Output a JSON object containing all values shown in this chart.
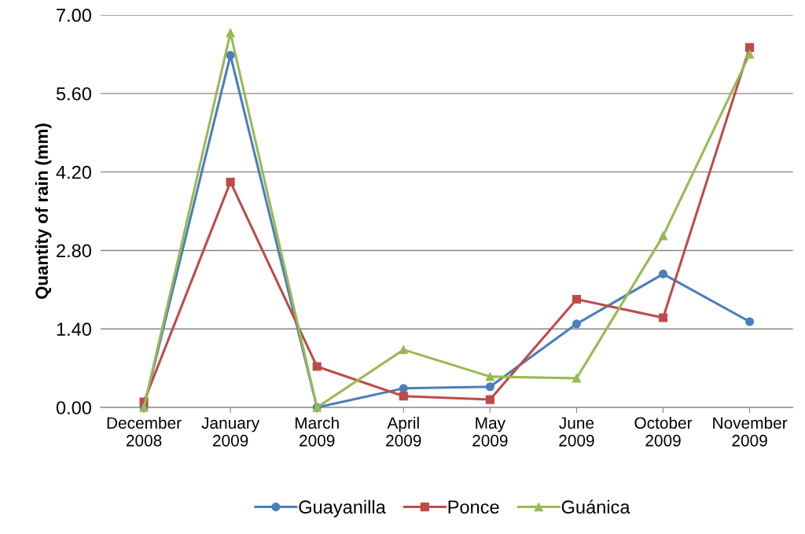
{
  "chart_data": {
    "type": "line",
    "ylabel": "Quantity of rain (mm)",
    "categories": [
      "December\n2008",
      "January\n2009",
      "March\n2009",
      "April\n2009",
      "May\n2009",
      "June\n2009",
      "October\n2009",
      "November\n2009"
    ],
    "series": [
      {
        "name": "Guayanilla",
        "color": "#4a7ebb",
        "marker": "circle",
        "values": [
          0.0,
          6.28,
          0.0,
          0.34,
          0.37,
          1.49,
          2.38,
          1.53
        ]
      },
      {
        "name": "Ponce",
        "color": "#be4b48",
        "marker": "square",
        "values": [
          0.1,
          4.02,
          0.73,
          0.2,
          0.14,
          1.93,
          1.6,
          6.42
        ]
      },
      {
        "name": "Guánica",
        "color": "#98b954",
        "marker": "triangle",
        "values": [
          0.0,
          6.68,
          0.0,
          1.03,
          0.55,
          0.52,
          3.06,
          6.3
        ]
      }
    ],
    "ylim": [
      0,
      7
    ],
    "yticks": [
      {
        "value": 0,
        "label": "0.00"
      },
      {
        "value": 1.4,
        "label": "1.40"
      },
      {
        "value": 2.8,
        "label": "2.80"
      },
      {
        "value": 4.2,
        "label": "4.20"
      },
      {
        "value": 5.6,
        "label": "5.60"
      },
      {
        "value": 7,
        "label": "7.00"
      }
    ],
    "grid": "y",
    "legend": "bottom",
    "line_style": "solid"
  }
}
